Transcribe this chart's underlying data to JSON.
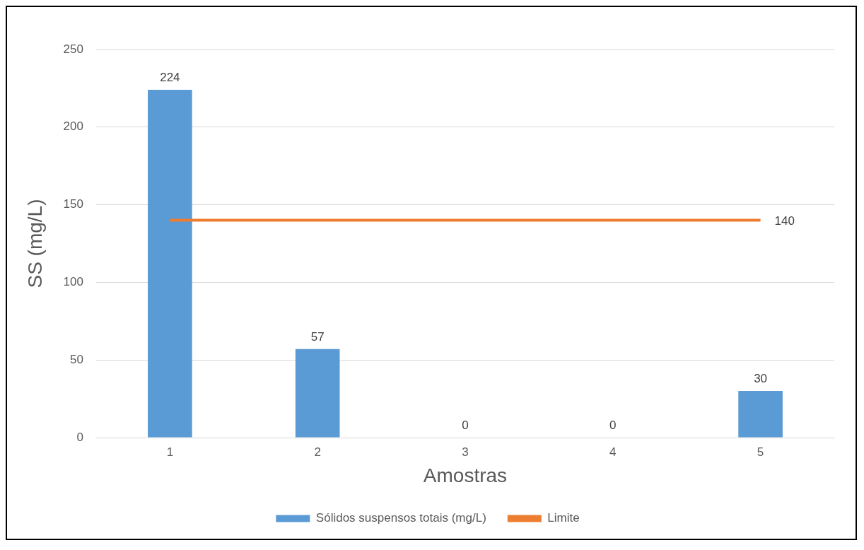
{
  "chart_data": {
    "type": "bar",
    "xlabel": "Amostras",
    "ylabel": "SS (mg/L)",
    "categories": [
      "1",
      "2",
      "3",
      "4",
      "5"
    ],
    "series": [
      {
        "name": "Sólidos suspensos totais (mg/L)",
        "color": "#5b9bd5",
        "values": [
          224,
          57,
          0,
          0,
          30
        ],
        "value_labels": [
          "224",
          "57",
          "0",
          "0",
          "30"
        ]
      },
      {
        "name": "Limite",
        "type": "line",
        "color": "#ed7d31",
        "values": [
          140,
          140,
          140,
          140,
          140
        ],
        "value_labels": [
          null,
          null,
          null,
          null,
          "140"
        ]
      }
    ],
    "ylim": [
      0,
      250
    ],
    "yticks": [
      0,
      50,
      100,
      150,
      200,
      250
    ],
    "grid": "y",
    "legend": "bottom",
    "marker": "none"
  }
}
